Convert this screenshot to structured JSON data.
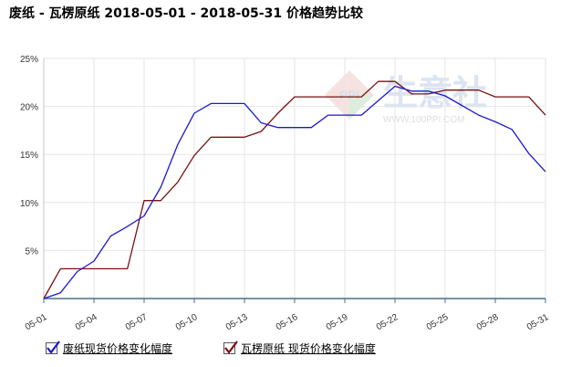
{
  "title": "废纸 - 瓦楞原纸 2018-05-01 - 2018-05-31 价格趋势比较",
  "watermark": {
    "logo_text": "PPI",
    "brand": "生意社",
    "url": "WWW.100PPI.COM"
  },
  "colors": {
    "series1": "#1a1ad0",
    "series2": "#7a1010",
    "grid": "#e6e6e6",
    "axis": "#4a6f8a"
  },
  "legend": [
    {
      "label": "废纸现货价格变化幅度",
      "icon": "check-icon"
    },
    {
      "label": "瓦楞原纸 现货价格变化幅度",
      "icon": "check-icon"
    }
  ],
  "chart_data": {
    "type": "line",
    "title": "",
    "xlabel": "",
    "ylabel": "",
    "ylim": [
      0,
      25
    ],
    "yticks": [
      "5%",
      "10%",
      "15%",
      "20%",
      "25%"
    ],
    "xticks": [
      "05-01",
      "05-04",
      "05-07",
      "05-10",
      "05-13",
      "05-16",
      "05-19",
      "05-22",
      "05-25",
      "05-28",
      "05-31"
    ],
    "grid": true,
    "legend_position": "bottom",
    "x": [
      "05-01",
      "05-02",
      "05-03",
      "05-04",
      "05-05",
      "05-06",
      "05-07",
      "05-08",
      "05-09",
      "05-10",
      "05-11",
      "05-12",
      "05-13",
      "05-14",
      "05-15",
      "05-16",
      "05-17",
      "05-18",
      "05-19",
      "05-20",
      "05-21",
      "05-22",
      "05-23",
      "05-24",
      "05-25",
      "05-26",
      "05-27",
      "05-28",
      "05-29",
      "05-30",
      "05-31"
    ],
    "series": [
      {
        "name": "废纸现货价格变化幅度",
        "values": [
          0,
          0.6,
          2.8,
          3.9,
          6.5,
          7.5,
          8.6,
          11.6,
          16,
          19.3,
          20.3,
          20.3,
          20.3,
          18.3,
          17.8,
          17.8,
          17.8,
          19.1,
          19.1,
          19.1,
          20.6,
          22.1,
          21.6,
          21.6,
          21.1,
          20.1,
          19.1,
          18.4,
          17.6,
          15.1,
          13.2
        ]
      },
      {
        "name": "瓦楞原纸 现货价格变化幅度",
        "values": [
          0,
          3.1,
          3.1,
          3.1,
          3.1,
          3.1,
          10.2,
          10.2,
          12.1,
          14.9,
          16.8,
          16.8,
          16.8,
          17.4,
          19.3,
          21,
          21,
          21,
          21,
          21,
          22.6,
          22.6,
          21.3,
          21.3,
          21.7,
          21.7,
          21.7,
          21,
          21,
          21,
          19.1
        ]
      }
    ]
  }
}
